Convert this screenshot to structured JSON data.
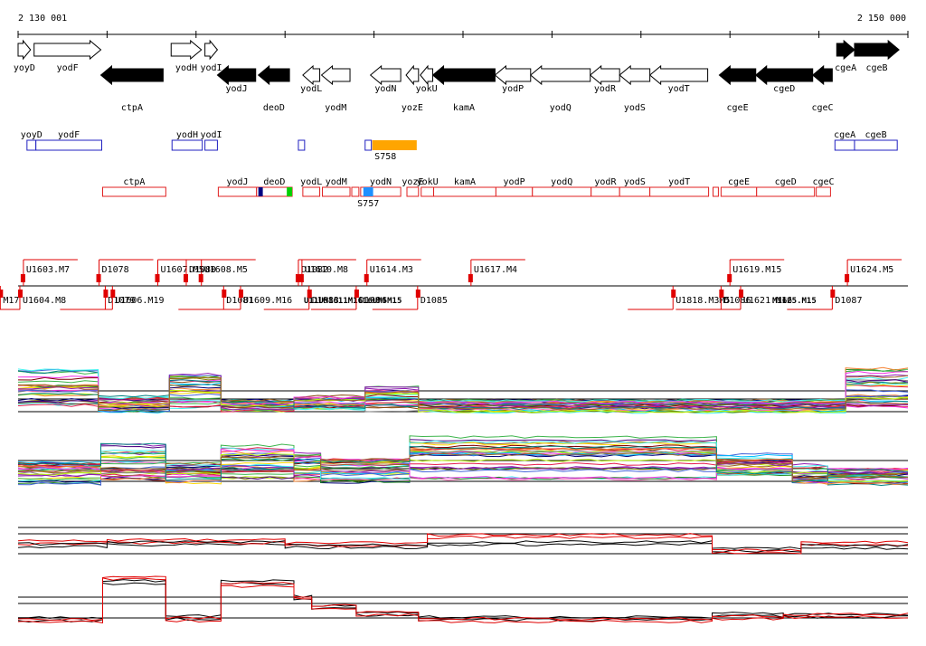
{
  "ruler": {
    "start_label": "2 130 001",
    "end_label": "2 150 000"
  },
  "colors": {
    "forward_gene": "#ffffff",
    "reverse_gene": "#000000",
    "annotation_upper": "#2020c0",
    "annotation_lower": "#e02020",
    "segment": "#e00000",
    "highlight": "#ffa500",
    "selected": "#1e90ff"
  },
  "genes": [
    {
      "name": "yoyD",
      "strand": "fwd",
      "start": 0,
      "end": 0.014
    },
    {
      "name": "yodF",
      "strand": "fwd",
      "start": 0.018,
      "end": 0.093
    },
    {
      "name": "ctpA",
      "strand": "rev",
      "start": 0.093,
      "end": 0.163
    },
    {
      "name": "yodH",
      "strand": "fwd",
      "start": 0.172,
      "end": 0.206
    },
    {
      "name": "yodI",
      "strand": "fwd",
      "start": 0.21,
      "end": 0.224
    },
    {
      "name": "yodJ",
      "strand": "rev",
      "start": 0.224,
      "end": 0.267
    },
    {
      "name": "deoD",
      "strand": "rev",
      "start": 0.27,
      "end": 0.305
    },
    {
      "name": "yodL",
      "strand": "rev",
      "start": 0.32,
      "end": 0.339
    },
    {
      "name": "yodM",
      "strand": "rev",
      "start": 0.341,
      "end": 0.373
    },
    {
      "name": "yodN",
      "strand": "rev",
      "start": 0.396,
      "end": 0.43
    },
    {
      "name": "yozE",
      "strand": "rev",
      "start": 0.436,
      "end": 0.45
    },
    {
      "name": "yokU",
      "strand": "rev",
      "start": 0.452,
      "end": 0.466
    },
    {
      "name": "kamA",
      "strand": "rev",
      "start": 0.466,
      "end": 0.536
    },
    {
      "name": "yodP",
      "strand": "rev",
      "start": 0.536,
      "end": 0.576
    },
    {
      "name": "yodQ",
      "strand": "rev",
      "start": 0.576,
      "end": 0.643
    },
    {
      "name": "yodR",
      "strand": "rev",
      "start": 0.643,
      "end": 0.676
    },
    {
      "name": "yodS",
      "strand": "rev",
      "start": 0.676,
      "end": 0.71
    },
    {
      "name": "yodT",
      "strand": "rev",
      "start": 0.71,
      "end": 0.775
    },
    {
      "name": "cgeE",
      "strand": "rev",
      "start": 0.788,
      "end": 0.829
    },
    {
      "name": "cgeD",
      "strand": "rev",
      "start": 0.829,
      "end": 0.893
    },
    {
      "name": "cgeC",
      "strand": "rev",
      "start": 0.893,
      "end": 0.915
    },
    {
      "name": "cgeA",
      "strand": "fwd",
      "start": 0.92,
      "end": 0.94
    },
    {
      "name": "cgeB",
      "strand": "fwd",
      "start": 0.94,
      "end": 0.99
    }
  ],
  "annotations_upper": [
    {
      "label": "yoyD",
      "start": 0.01,
      "end": 0.02
    },
    {
      "label": "yodF",
      "start": 0.02,
      "end": 0.094
    },
    {
      "label": "yodH",
      "start": 0.173,
      "end": 0.207
    },
    {
      "label": "yodI",
      "start": 0.21,
      "end": 0.224
    },
    {
      "label": "",
      "start": 0.315,
      "end": 0.322
    },
    {
      "label": "",
      "start": 0.39,
      "end": 0.397
    },
    {
      "label": "cgeA",
      "start": 0.918,
      "end": 0.94
    },
    {
      "label": "cgeB",
      "start": 0.94,
      "end": 0.988
    }
  ],
  "highlight": {
    "label": "S758",
    "start": 0.398,
    "end": 0.448
  },
  "annotations_lower": [
    {
      "label": "ctpA",
      "start": 0.095,
      "end": 0.166
    },
    {
      "label": "yodJ",
      "start": 0.225,
      "end": 0.268
    },
    {
      "label": "deoD",
      "start": 0.268,
      "end": 0.308
    },
    {
      "label": "yodL",
      "start": 0.32,
      "end": 0.339
    },
    {
      "label": "yodM",
      "start": 0.342,
      "end": 0.373
    },
    {
      "label": "",
      "start": 0.375,
      "end": 0.383
    },
    {
      "label": "yodN",
      "start": 0.385,
      "end": 0.43
    },
    {
      "label": "yozE",
      "start": 0.437,
      "end": 0.45
    },
    {
      "label": "yokU",
      "start": 0.453,
      "end": 0.467
    },
    {
      "label": "kamA",
      "start": 0.467,
      "end": 0.537
    },
    {
      "label": "yodP",
      "start": 0.537,
      "end": 0.578
    },
    {
      "label": "yodQ",
      "start": 0.578,
      "end": 0.644
    },
    {
      "label": "yodR",
      "start": 0.644,
      "end": 0.676
    },
    {
      "label": "yodS",
      "start": 0.676,
      "end": 0.71
    },
    {
      "label": "yodT",
      "start": 0.71,
      "end": 0.776
    },
    {
      "label": "",
      "start": 0.781,
      "end": 0.787
    },
    {
      "label": "cgeE",
      "start": 0.79,
      "end": 0.83
    },
    {
      "label": "cgeD",
      "start": 0.83,
      "end": 0.895
    },
    {
      "label": "cgeC",
      "start": 0.897,
      "end": 0.913
    }
  ],
  "lower_markers": [
    {
      "label": "",
      "start": 0.27,
      "end": 0.275,
      "color": "#000080"
    },
    {
      "label": "",
      "start": 0.302,
      "end": 0.308,
      "color": "#00d000"
    },
    {
      "label": "S757",
      "start": 0.388,
      "end": 0.399,
      "color": "#1e90ff"
    }
  ],
  "segments_above": [
    {
      "label": "U1603.M7",
      "pos": 0.006
    },
    {
      "label": "D1078",
      "pos": 0.091
    },
    {
      "label": "U1607.M5",
      "pos": 0.157
    },
    {
      "label": "U1608.M5",
      "pos": 0.206
    },
    {
      "label": "D1080",
      "pos": 0.189
    },
    {
      "label": "D1082",
      "pos": 0.315
    },
    {
      "label": "U1610.M8",
      "pos": 0.319
    },
    {
      "label": "U1614.M3",
      "pos": 0.392
    },
    {
      "label": "U1617.M4",
      "pos": 0.509
    },
    {
      "label": "U1619.M15",
      "pos": 0.8
    },
    {
      "label": "U1624.M5",
      "pos": 0.932
    }
  ],
  "segments_below": [
    {
      "label": "M17",
      "pos": -0.02
    },
    {
      "label": "U1604.M8",
      "pos": 0.002
    },
    {
      "label": "D1079",
      "pos": 0.098
    },
    {
      "label": "U1606.M19",
      "pos": 0.106
    },
    {
      "label": "D1081",
      "pos": 0.231
    },
    {
      "label": "U1609.M16",
      "pos": 0.25
    },
    {
      "label": "D1083",
      "pos": 0.327
    },
    {
      "label": "D1084",
      "pos": 0.38
    },
    {
      "label": "D1085",
      "pos": 0.449
    },
    {
      "label": "U1818.M3M5",
      "pos": 0.736
    },
    {
      "label": "D1086",
      "pos": 0.79
    },
    {
      "label": "U1621.M16",
      "pos": 0.812
    },
    {
      "label": "D1087",
      "pos": 0.915
    }
  ],
  "overlap_text": "U11UM1611M1616UM5M15",
  "overlap_text_b": "M1625.M15"
}
